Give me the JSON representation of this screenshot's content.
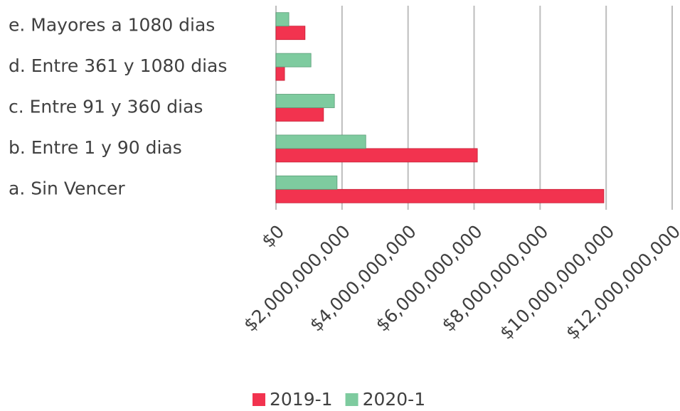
{
  "chart_data": {
    "type": "hbar",
    "categories": [
      "a. Sin Vencer",
      "b. Entre 1 y 90 dias",
      "c. Entre 91 y 360 dias",
      "d. Entre 361 y 1080 dias",
      "e. Mayores a 1080 dias"
    ],
    "series": [
      {
        "name": "2019-1",
        "color": "#f2334f",
        "values": [
          9930000000,
          6100000000,
          1440000000,
          260000000,
          880000000
        ]
      },
      {
        "name": "2020-1",
        "color": "#7ecb9f",
        "values": [
          1850000000,
          2720000000,
          1770000000,
          1060000000,
          390000000
        ]
      }
    ],
    "xlim": [
      0,
      12000000000
    ],
    "xticks": [
      {
        "value": 0,
        "label": "$0"
      },
      {
        "value": 2000000000,
        "label": "$2,000,000,000"
      },
      {
        "value": 4000000000,
        "label": "$4,000,000,000"
      },
      {
        "value": 6000000000,
        "label": "$6,000,000,000"
      },
      {
        "value": 8000000000,
        "label": "$8,000,000,000"
      },
      {
        "value": 10000000000,
        "label": "$10,000,000,000"
      },
      {
        "value": 12000000000,
        "label": "$12,000,000,000"
      }
    ],
    "grid": true,
    "legend": "bottom"
  }
}
